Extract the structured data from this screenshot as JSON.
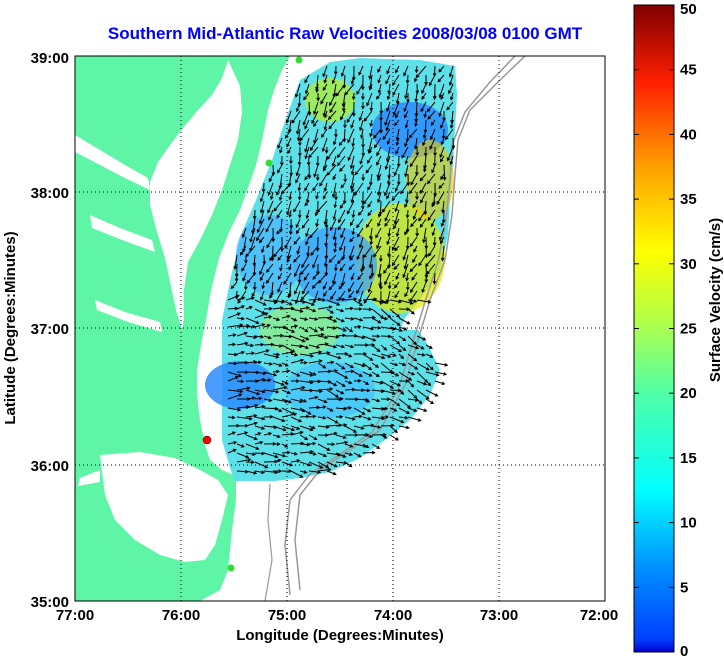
{
  "chart_data": {
    "type": "heatmap",
    "title": "Southern Mid-Atlantic Raw Velocities 2008/03/08 0100 GMT",
    "xlabel": "Longitude (Degrees:Minutes)",
    "ylabel": "Latitude (Degrees:Minutes)",
    "x_ticks": [
      "77:00",
      "76:00",
      "75:00",
      "74:00",
      "73:00",
      "72:00"
    ],
    "x_values": [
      -77,
      -76,
      -75,
      -74,
      -73,
      -72
    ],
    "y_ticks": [
      "39:00",
      "38:00",
      "37:00",
      "36:00",
      "35:00"
    ],
    "y_values": [
      39,
      38,
      37,
      36,
      35
    ],
    "xlim": [
      -77,
      -72
    ],
    "ylim": [
      35,
      39
    ],
    "grid": true,
    "colorbar": {
      "label": "Surface Velocity (cm/s)",
      "ticks": [
        "50",
        "45",
        "40",
        "35",
        "30",
        "25",
        "20",
        "15",
        "10",
        "5",
        "0"
      ],
      "tick_values": [
        50,
        45,
        40,
        35,
        30,
        25,
        20,
        15,
        10,
        5,
        0
      ],
      "range": [
        0,
        50
      ],
      "colormap": "jet"
    },
    "colors": {
      "land": "#5ef5a6",
      "title": "#0000ff",
      "station_red": "#ff0000",
      "station_green": "#33dd33"
    }
  }
}
